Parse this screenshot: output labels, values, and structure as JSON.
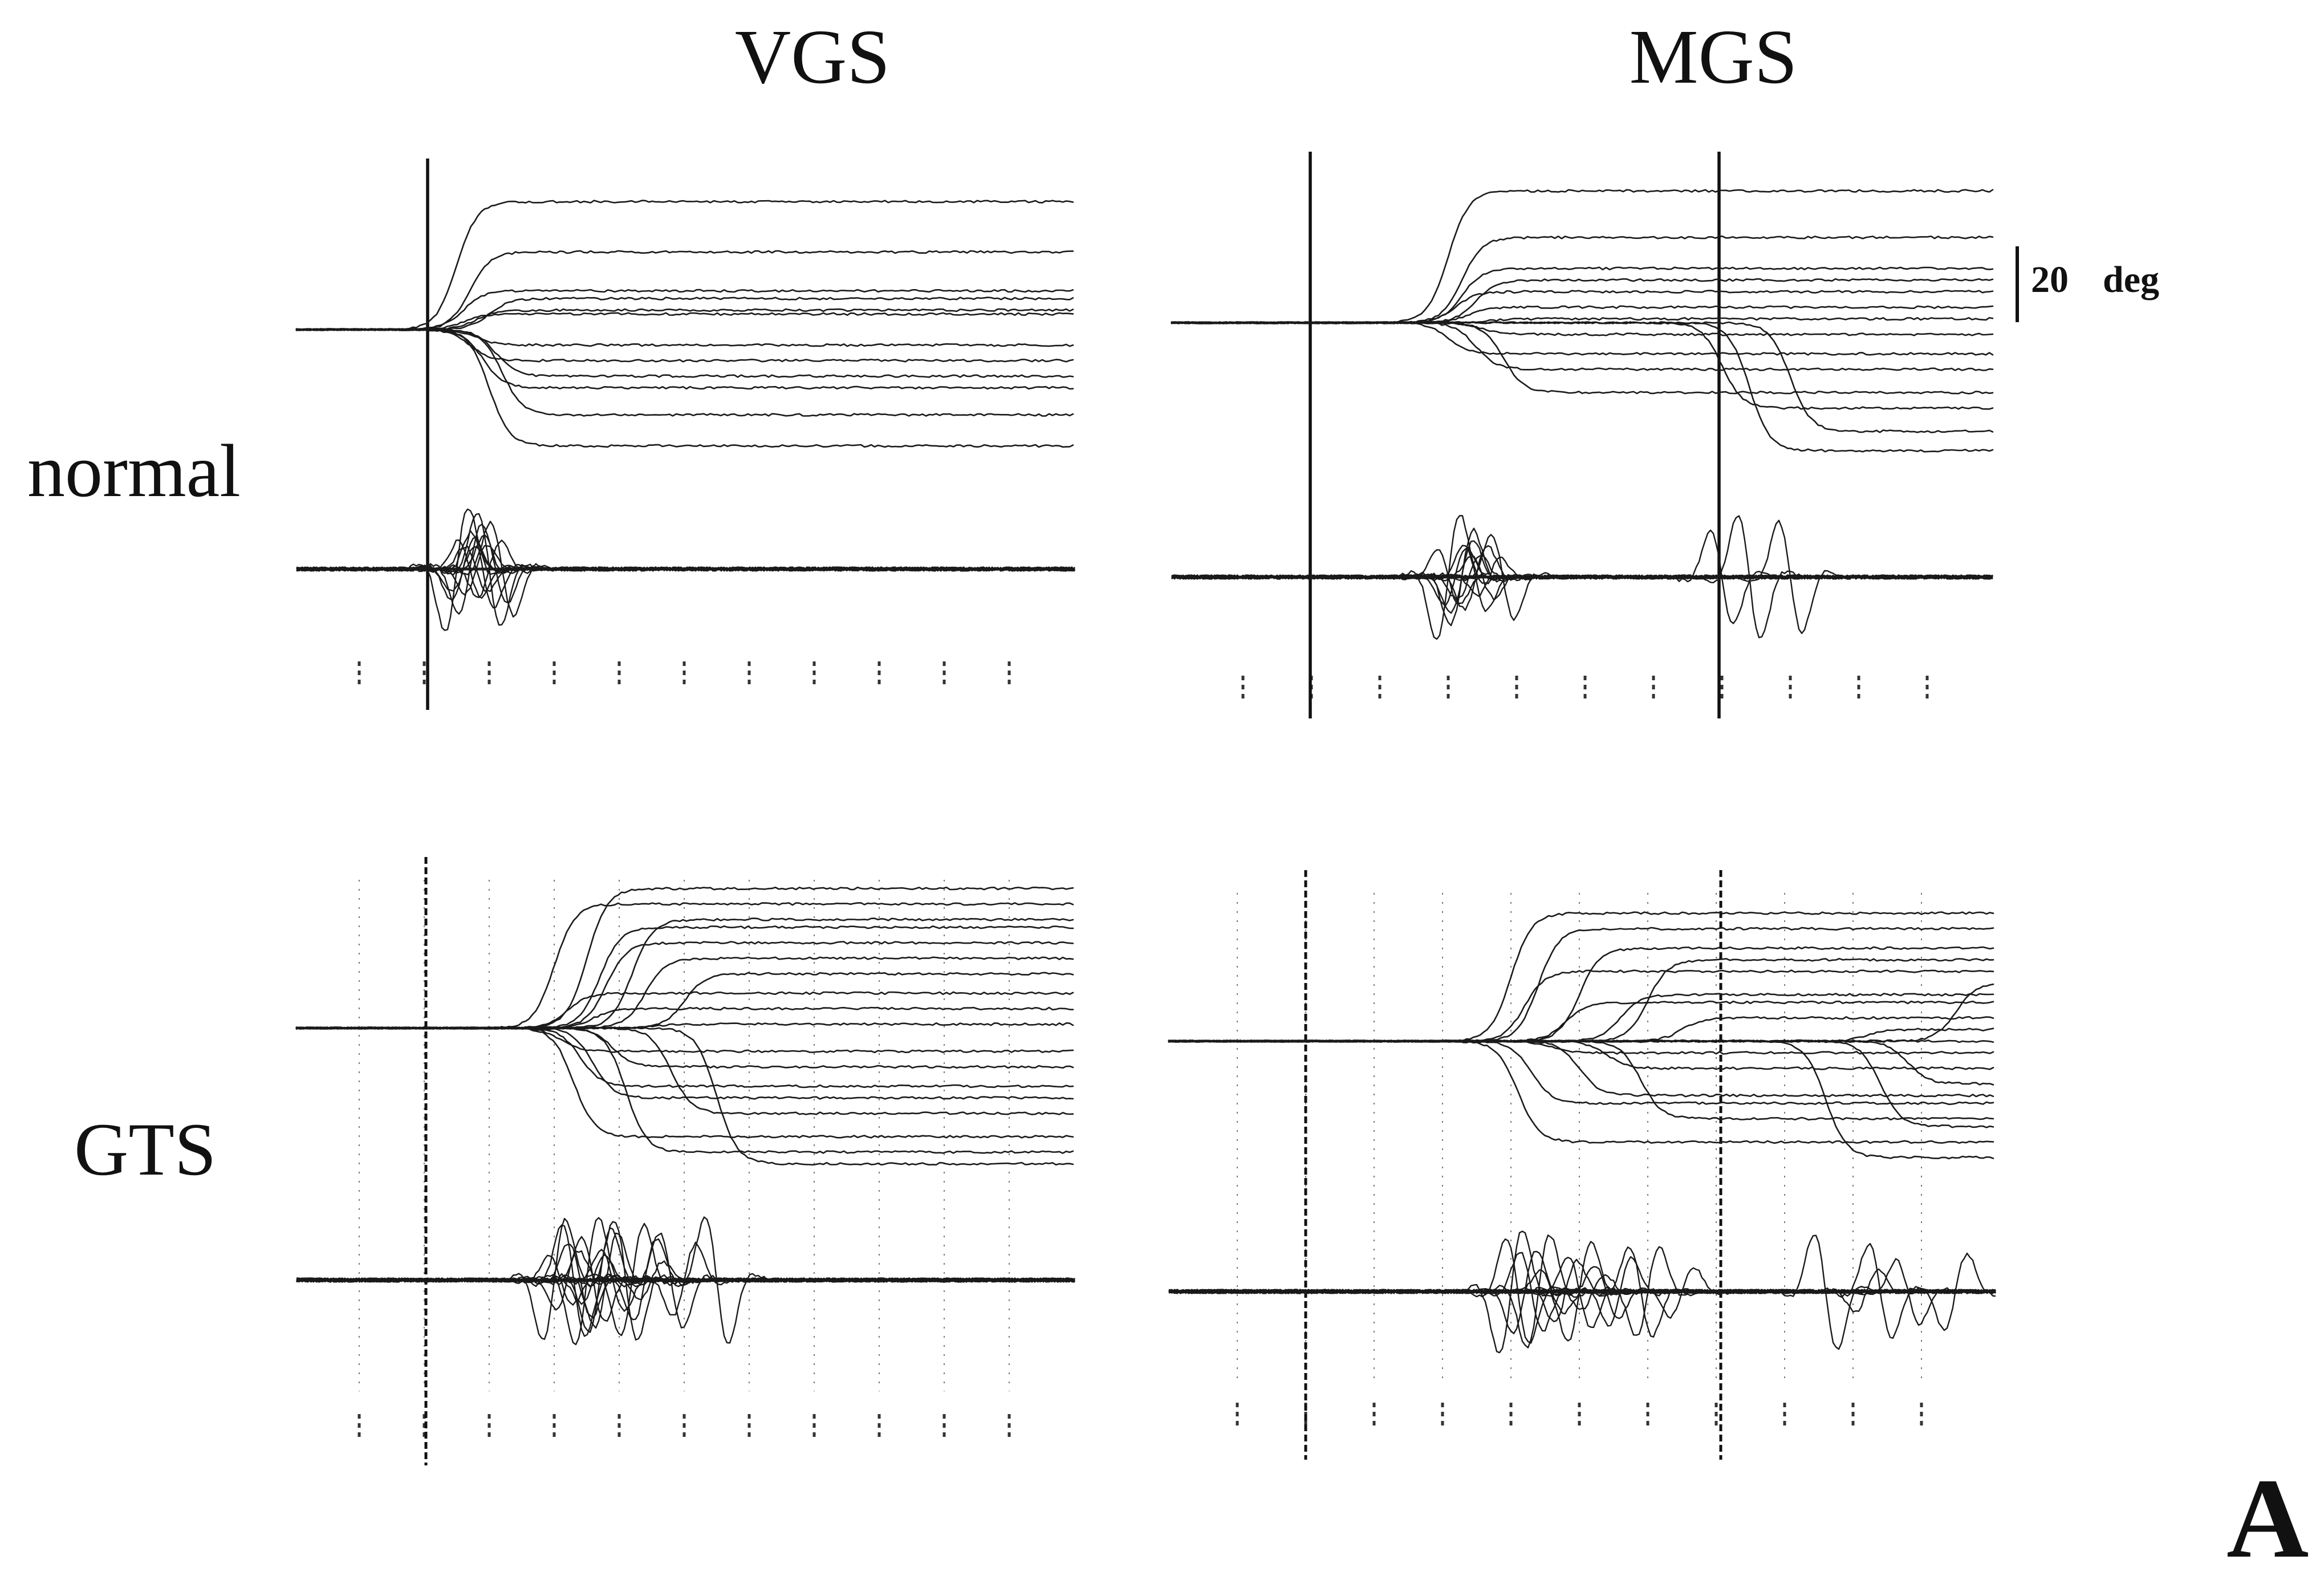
{
  "figure": {
    "panel_letter": "A",
    "scale_bar": {
      "value": 20,
      "unit": "deg"
    },
    "column_titles": [
      "VGS",
      "MGS"
    ],
    "row_labels": [
      "normal",
      "GTS"
    ]
  },
  "chart_data": [
    {
      "type": "line",
      "title": "VGS",
      "group": "normal",
      "task": "VGS",
      "event_ticks": 1,
      "trace_count": 12,
      "description_of_marks": "eye position traces with velocity traces below",
      "saccade_end_positions_deg": [
        33,
        20,
        10,
        8,
        5,
        -8,
        -15,
        -22,
        -30,
        4,
        -4,
        -12
      ],
      "saccade_onset_tick_index": [
        1.5,
        1.7,
        1.6,
        2.0,
        1.8,
        1.7,
        1.9,
        2.2,
        2.0,
        1.6,
        1.8,
        2.1
      ],
      "grid_visible": false
    },
    {
      "type": "line",
      "title": "MGS",
      "group": "normal",
      "task": "MGS",
      "event_ticks": 2,
      "trace_count": 14,
      "saccade_end_positions_deg": [
        34,
        22,
        11,
        8,
        4,
        1,
        -3,
        -8,
        -12,
        -18,
        -22,
        -28,
        -33,
        14
      ],
      "saccade_onset_tick_index": [
        3.0,
        3.2,
        3.4,
        3.1,
        3.3,
        3.6,
        3.5,
        3.0,
        3.4,
        3.8,
        7.0,
        8.0,
        7.4,
        3.2
      ],
      "grid_visible": false
    },
    {
      "type": "line",
      "title": "VGS",
      "group": "GTS",
      "task": "VGS",
      "event_ticks": 1,
      "trace_count": 18,
      "saccade_end_positions_deg": [
        36,
        32,
        28,
        22,
        14,
        9,
        5,
        1,
        -6,
        -10,
        -15,
        -22,
        -28,
        -32,
        -35,
        26,
        18,
        -18
      ],
      "saccade_onset_tick_index": [
        3.5,
        3.0,
        4.2,
        3.8,
        5.0,
        3.2,
        3.6,
        4.5,
        3.1,
        3.9,
        3.4,
        4.8,
        3.3,
        4.1,
        5.5,
        3.7,
        4.4,
        3.6
      ],
      "grid_visible": true
    },
    {
      "type": "line",
      "title": "MGS",
      "group": "GTS",
      "task": "MGS",
      "event_ticks": 2,
      "trace_count": 20,
      "saccade_end_positions_deg": [
        33,
        29,
        24,
        18,
        12,
        10,
        6,
        3,
        0,
        -3,
        -7,
        -11,
        -16,
        -20,
        -26,
        -30,
        21,
        15,
        -14,
        -22
      ],
      "saccade_onset_tick_index": [
        4.0,
        4.4,
        5.0,
        4.2,
        5.6,
        4.8,
        6.5,
        9.2,
        5.2,
        4.6,
        5.4,
        9.8,
        4.3,
        5.9,
        4.1,
        8.6,
        6.0,
        10.5,
        5.0,
        9.4
      ],
      "grid_visible": true
    }
  ]
}
